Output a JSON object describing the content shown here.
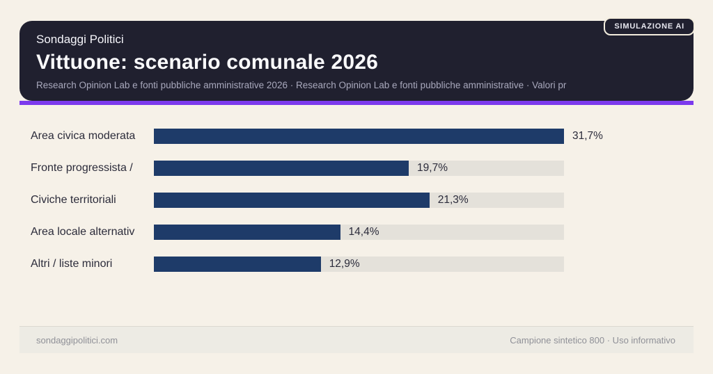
{
  "badge": {
    "label": "SIMULAZIONE AI"
  },
  "header": {
    "kicker": "Sondaggi Politici",
    "title": "Vittuone: scenario comunale 2026",
    "subtitle": "Research Opinion Lab e fonti pubbliche amministrative 2026 · Research Opinion Lab e fonti pubbliche amministrative · Valori pr"
  },
  "chart_data": {
    "type": "bar",
    "orientation": "horizontal",
    "title": "Vittuone: scenario comunale 2026",
    "categories": [
      "Area civica moderata",
      "Fronte progressista /",
      "Civiche territoriali",
      "Area locale alternativ",
      "Altri / liste minori"
    ],
    "values": [
      31.7,
      19.7,
      21.3,
      14.4,
      12.9
    ],
    "value_labels": [
      "31,7%",
      "19,7%",
      "21,3%",
      "14,4%",
      "12,9%"
    ],
    "unit": "%",
    "scale_max": 31.7,
    "bar_color": "#1e3b69",
    "track_color": "#e4e1da",
    "grid": false,
    "legend": false
  },
  "footer": {
    "left": "sondaggipolitici.com",
    "right": "Campione sintetico 800 · Uso informativo"
  },
  "colors": {
    "background": "#f6f1e8",
    "header_card": "#20202f",
    "accent": "#7c3aed",
    "bar": "#1e3b69",
    "track": "#e4e1da",
    "text_dark": "#2b2b3a",
    "text_muted": "#a9a9bd",
    "footer_text": "#8f9097"
  }
}
